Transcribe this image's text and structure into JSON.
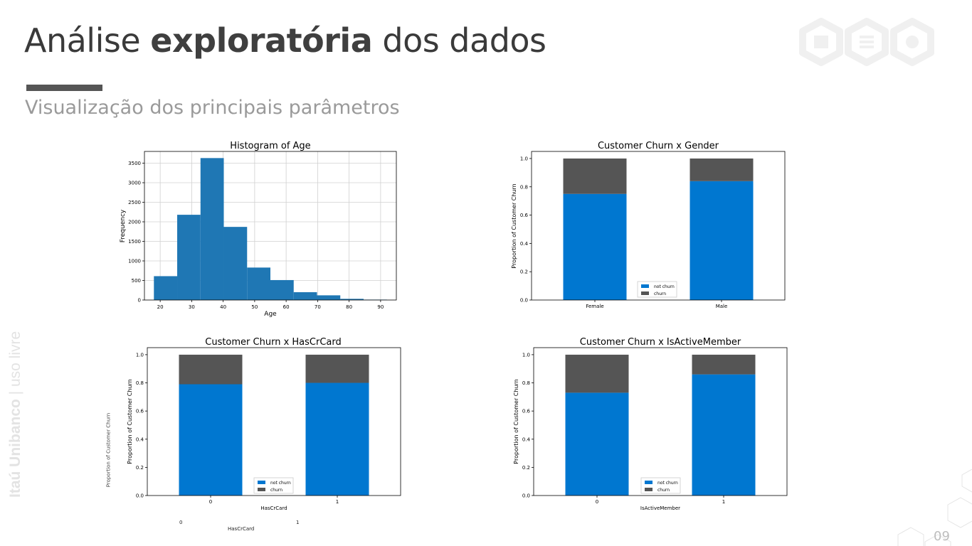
{
  "slide": {
    "title_regular_1": "Análise ",
    "title_bold": "exploratória",
    "title_regular_2": " dos dados",
    "subtitle": "Visualização dos principais parâmetros",
    "side_label_bold": "Itaú Unibanco",
    "side_label_light": " | uso livre",
    "page_number": "09",
    "accent_color": "#555555"
  },
  "ghost_axis": {
    "ylabel": "Proportion of Customer Churn",
    "tick_0": "0",
    "tick_1": "1",
    "xlabel": "HasCrCard"
  },
  "chart_data": [
    {
      "type": "bar",
      "title": "Histogram of Age",
      "xlabel": "Age",
      "ylabel": "Frequency",
      "grid": true,
      "color": "#1f77b4",
      "bin_edges": [
        18,
        25.4,
        32.8,
        40.2,
        47.6,
        55,
        62.4,
        69.8,
        77.2,
        84.6,
        92
      ],
      "values": [
        610,
        2180,
        3630,
        1870,
        830,
        510,
        200,
        120,
        30,
        10
      ],
      "xticks": [
        20,
        30,
        40,
        50,
        60,
        70,
        80,
        90
      ],
      "yticks": [
        0,
        500,
        1000,
        1500,
        2000,
        2500,
        3000,
        3500
      ],
      "xlim": [
        15,
        95
      ],
      "ylim": [
        0,
        3800
      ]
    },
    {
      "type": "bar",
      "stacked": true,
      "title": "Customer Churn x Gender",
      "xlabel": "",
      "ylabel": "Proportion of Customer Churn",
      "categories": [
        "Female",
        "Male"
      ],
      "series": [
        {
          "name": "not churn",
          "values": [
            0.75,
            0.84
          ],
          "color": "#0077d0"
        },
        {
          "name": "churn",
          "values": [
            0.25,
            0.16
          ],
          "color": "#555555"
        }
      ],
      "yticks": [
        "0.0",
        "0.2",
        "0.4",
        "0.6",
        "0.8",
        "1.0"
      ],
      "ylim": [
        0,
        1.05
      ],
      "legend_position": "lower-center"
    },
    {
      "type": "bar",
      "stacked": true,
      "title": "Customer Churn x HasCrCard",
      "xlabel": "HasCrCard",
      "ylabel": "Proportion of Customer Churn",
      "categories": [
        "0",
        "1"
      ],
      "series": [
        {
          "name": "not churn",
          "values": [
            0.79,
            0.8
          ],
          "color": "#0077d0"
        },
        {
          "name": "churn",
          "values": [
            0.21,
            0.2
          ],
          "color": "#555555"
        }
      ],
      "yticks": [
        "0.0",
        "0.2",
        "0.4",
        "0.6",
        "0.8",
        "1.0"
      ],
      "ylim": [
        0,
        1.05
      ],
      "legend_position": "lower-center"
    },
    {
      "type": "bar",
      "stacked": true,
      "title": "Customer Churn x IsActiveMember",
      "xlabel": "IsActiveMember",
      "ylabel": "Proportion of Customer Churn",
      "categories": [
        "0",
        "1"
      ],
      "series": [
        {
          "name": "not churn",
          "values": [
            0.73,
            0.86
          ],
          "color": "#0077d0"
        },
        {
          "name": "churn",
          "values": [
            0.27,
            0.14
          ],
          "color": "#555555"
        }
      ],
      "yticks": [
        "0.0",
        "0.2",
        "0.4",
        "0.6",
        "0.8",
        "1.0"
      ],
      "ylim": [
        0,
        1.05
      ],
      "legend_position": "lower-center"
    }
  ]
}
